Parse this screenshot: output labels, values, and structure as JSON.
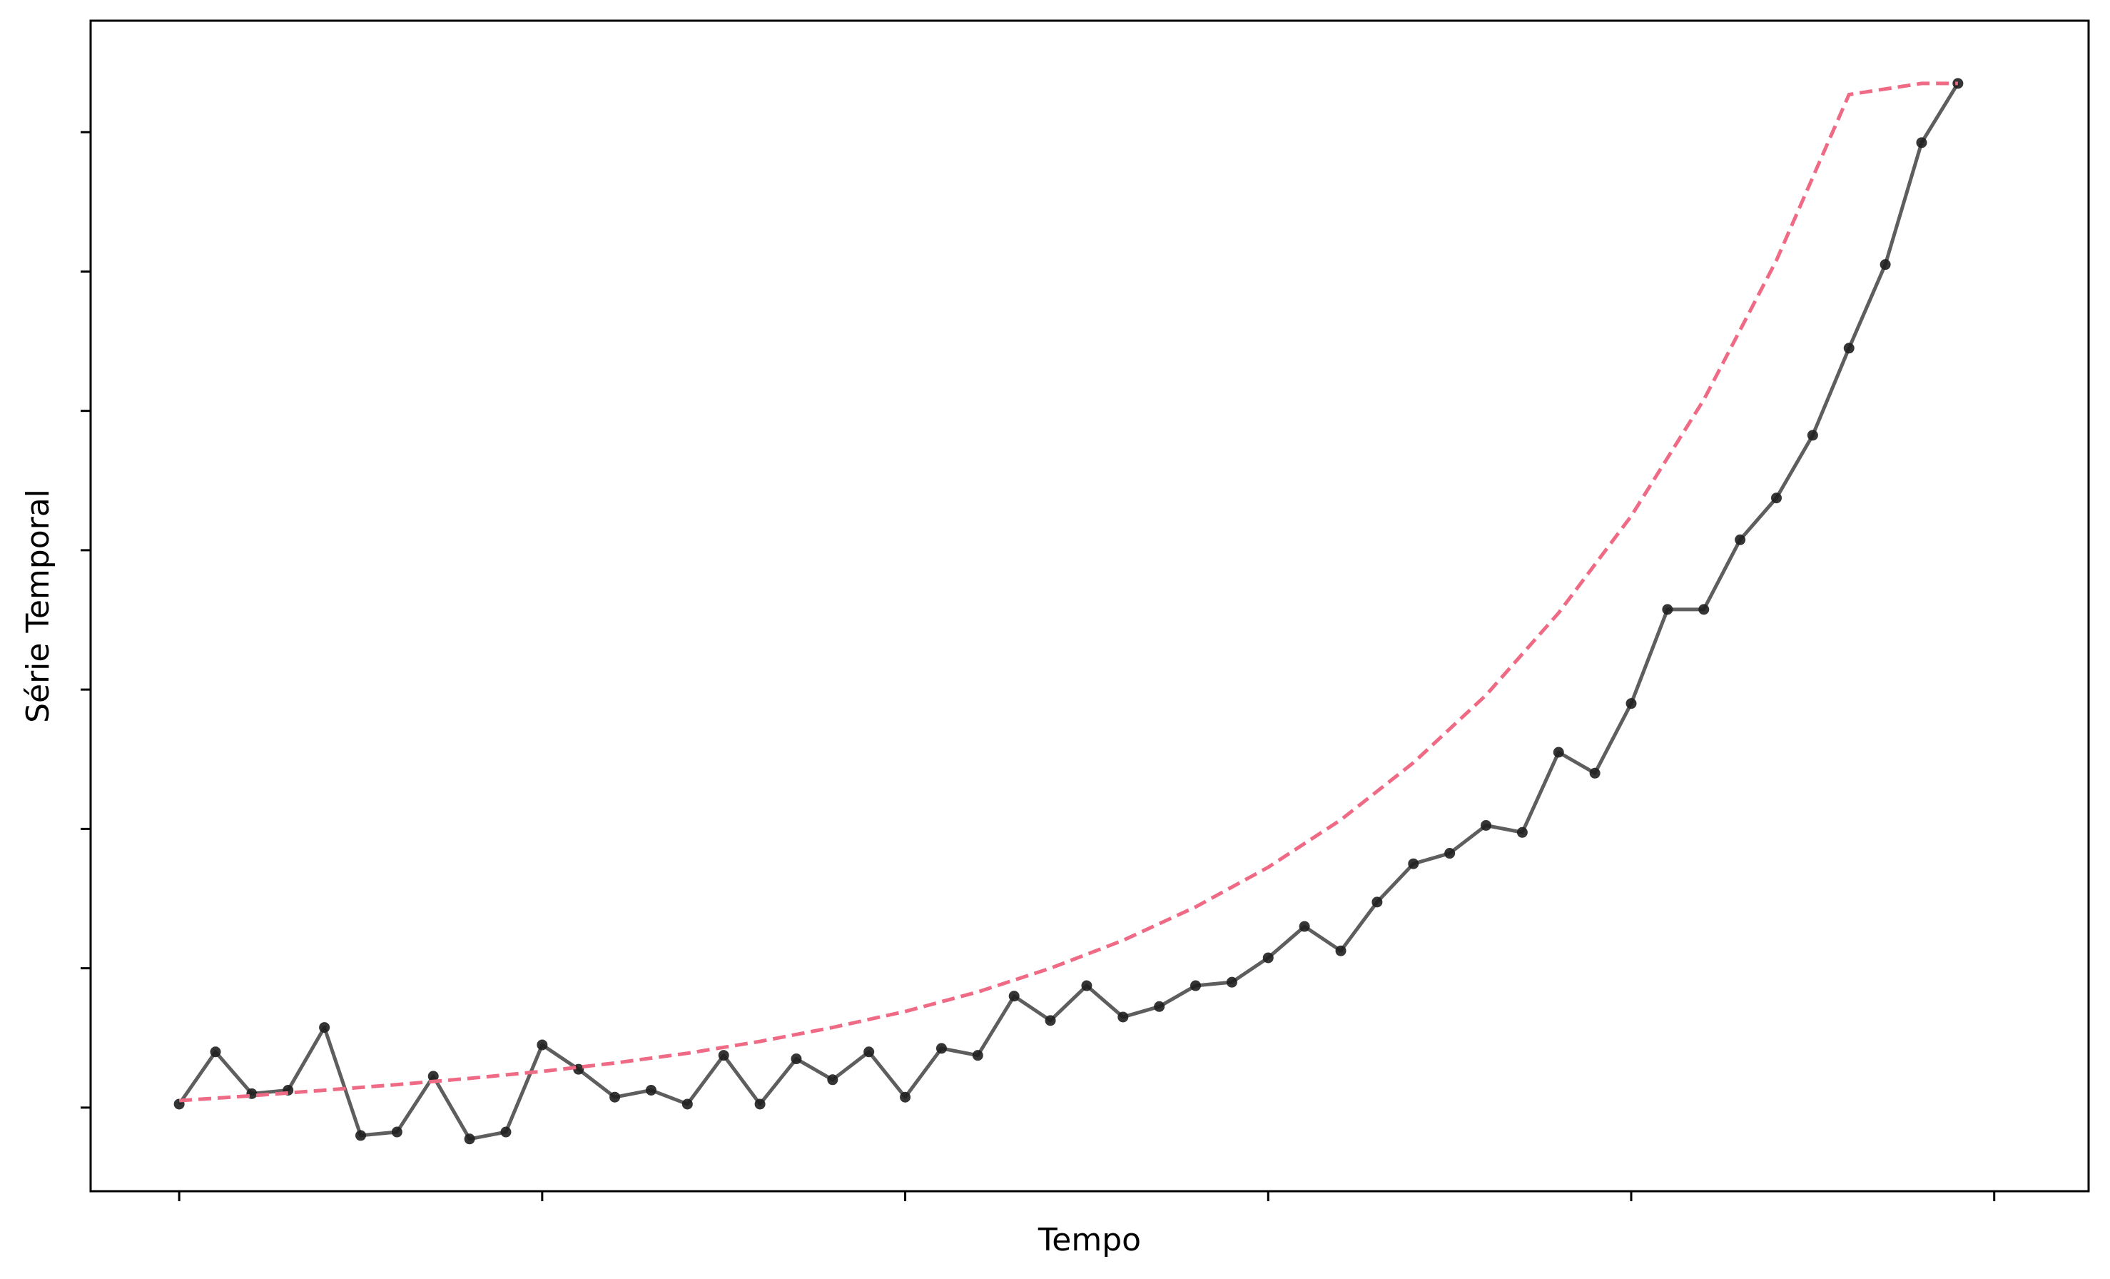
{
  "chart_data": {
    "type": "line",
    "title": "",
    "xlabel": "Tempo",
    "ylabel": "Série Temporal",
    "x_tick_labels": [],
    "y_tick_labels": [],
    "xlim": [
      -2.44,
      52.6
    ],
    "ylim": [
      -1.2,
      15.6
    ],
    "grid": false,
    "legend": "none",
    "series": [
      {
        "style": "solid line with circular markers",
        "color": "#3a3a3a",
        "x": [
          0,
          1,
          2,
          3,
          4,
          5,
          6,
          7,
          8,
          9,
          10,
          11,
          12,
          13,
          14,
          15,
          16,
          17,
          18,
          19,
          20,
          21,
          22,
          23,
          24,
          25,
          26,
          27,
          28,
          29,
          30,
          31,
          32,
          33,
          34,
          35,
          36,
          37,
          38,
          39,
          40,
          41,
          42,
          43,
          44,
          45,
          46,
          47,
          48,
          49
        ],
        "y": [
          0.05,
          0.8,
          0.2,
          0.25,
          1.15,
          -0.4,
          -0.35,
          0.45,
          -0.45,
          -0.35,
          0.9,
          0.55,
          0.15,
          0.25,
          0.05,
          0.75,
          0.05,
          0.7,
          0.4,
          0.8,
          0.15,
          0.85,
          0.75,
          1.6,
          1.25,
          1.75,
          1.3,
          1.45,
          1.75,
          1.8,
          2.15,
          2.6,
          2.25,
          2.95,
          3.5,
          3.65,
          4.05,
          3.95,
          5.1,
          4.8,
          5.8,
          7.15,
          7.15,
          8.15,
          8.75,
          9.65,
          10.9,
          12.1,
          13.85,
          14.7
        ]
      },
      {
        "style": "dashed trend line",
        "color": "#ef6b85",
        "x": [
          0,
          2,
          4,
          6,
          8,
          10,
          12,
          14,
          16,
          18,
          20,
          22,
          24,
          26,
          28,
          30,
          32,
          34,
          36,
          38,
          40,
          42,
          44,
          46,
          48,
          49
        ],
        "y": [
          0.1,
          0.17,
          0.25,
          0.33,
          0.42,
          0.52,
          0.64,
          0.78,
          0.95,
          1.15,
          1.38,
          1.66,
          2.0,
          2.4,
          2.88,
          3.45,
          4.13,
          4.95,
          5.92,
          7.1,
          8.49,
          10.16,
          12.16,
          14.54,
          14.7,
          14.7
        ]
      }
    ]
  },
  "trend_color": "#ef6b85",
  "data_color": "#3a3a3a"
}
